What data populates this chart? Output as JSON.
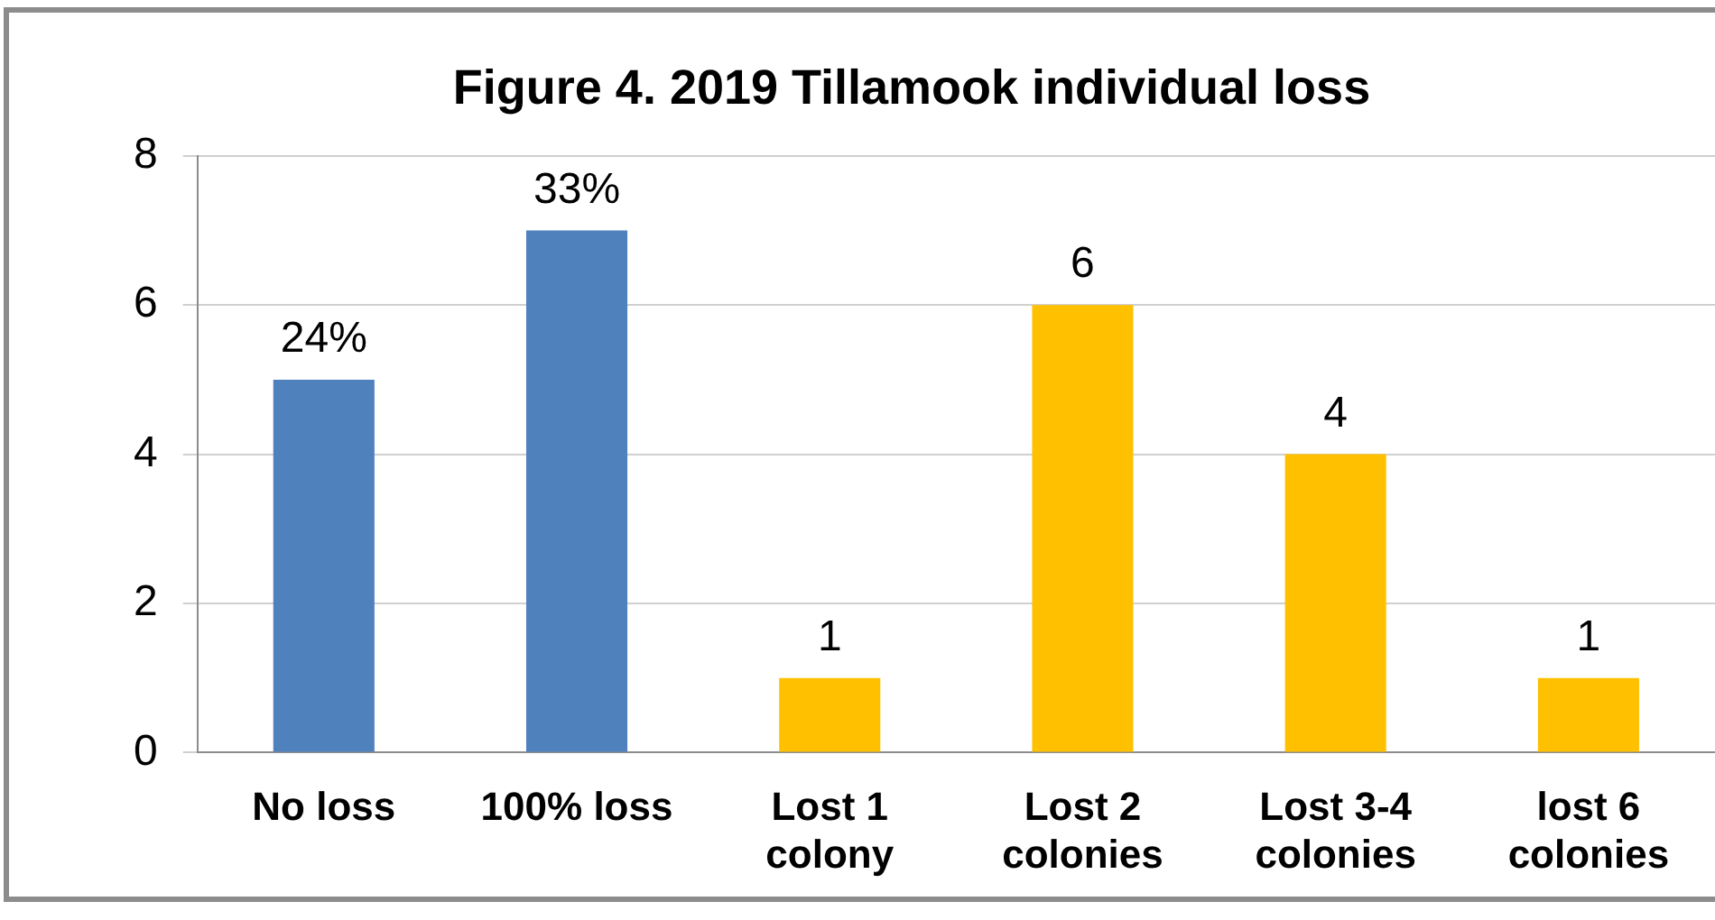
{
  "chart_data": {
    "type": "bar",
    "title": "Figure 4. 2019 Tillamook individual loss",
    "categories": [
      "No loss",
      "100% loss",
      "Lost 1 colony",
      "Lost 2 colonies",
      "Lost 3-4 colonies",
      "lost 6 colonies"
    ],
    "values": [
      5,
      7,
      1,
      6,
      4,
      1
    ],
    "colors": [
      "#4f81bd",
      "#4f81bd",
      "#ffc000",
      "#ffc000",
      "#ffc000",
      "#ffc000"
    ],
    "value_labels": [
      null,
      null,
      "1",
      "6",
      "4",
      "1"
    ],
    "annotations": [
      {
        "text": "24%",
        "x": "No loss",
        "y": 5
      },
      {
        "text": "33%",
        "x": "100% loss",
        "y": 7
      }
    ],
    "ylim": [
      0,
      8
    ],
    "yticks": [
      0,
      2,
      4,
      6,
      8
    ],
    "grid": "y",
    "legend": false
  }
}
